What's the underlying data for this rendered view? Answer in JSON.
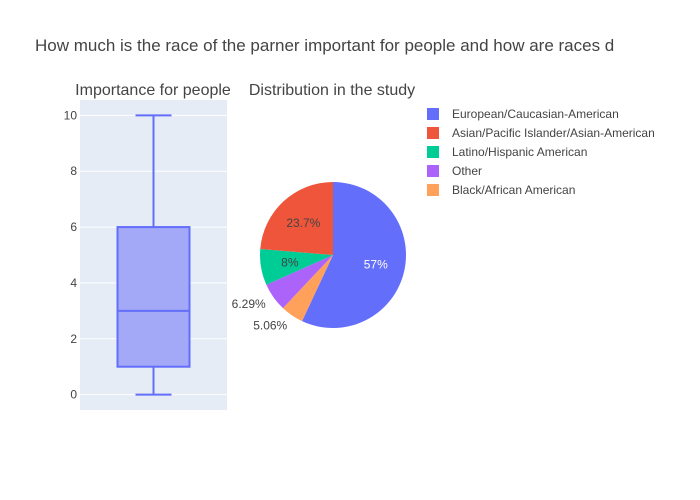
{
  "chart_data": [
    {
      "type": "box",
      "title": "Importance for people",
      "ylim": [
        -0.55,
        10.55
      ],
      "yticks": [
        "0",
        "2",
        "4",
        "6",
        "8",
        "10"
      ],
      "box": {
        "min": 0,
        "q1": 1,
        "median": 3,
        "q3": 6,
        "max": 10
      },
      "colors": {
        "line": "#636efa",
        "fill": "#a3a8f7",
        "plot_bg": "#e5ecf6",
        "grid": "#ffffff"
      },
      "grid": true
    },
    {
      "type": "pie",
      "title": "Distribution in the study",
      "slices": [
        {
          "label": "European/Caucasian-American",
          "percent": 57.0,
          "text": "57%",
          "color": "#636efa"
        },
        {
          "label": "Black/African American",
          "percent": 5.06,
          "text": "5.06%",
          "color": "#ffa15a"
        },
        {
          "label": "Other",
          "percent": 6.29,
          "text": "6.29%",
          "color": "#ab63fa"
        },
        {
          "label": "Latino/Hispanic American",
          "percent": 8.0,
          "text": "8%",
          "color": "#00cc96"
        },
        {
          "label": "Asian/Pacific Islander/Asian-American",
          "percent": 23.7,
          "text": "23.7%",
          "color": "#ef553b"
        }
      ],
      "legend": {
        "placement": "top-right",
        "items": [
          {
            "label": "European/Caucasian-American",
            "color": "#636efa"
          },
          {
            "label": "Asian/Pacific Islander/Asian-American",
            "color": "#ef553b"
          },
          {
            "label": "Latino/Hispanic American",
            "color": "#00cc96"
          },
          {
            "label": "Other",
            "color": "#ab63fa"
          },
          {
            "label": "Black/African American",
            "color": "#ffa15a"
          }
        ]
      }
    }
  ],
  "figure_title": "How much is the race of the parner important for people and how are races d"
}
